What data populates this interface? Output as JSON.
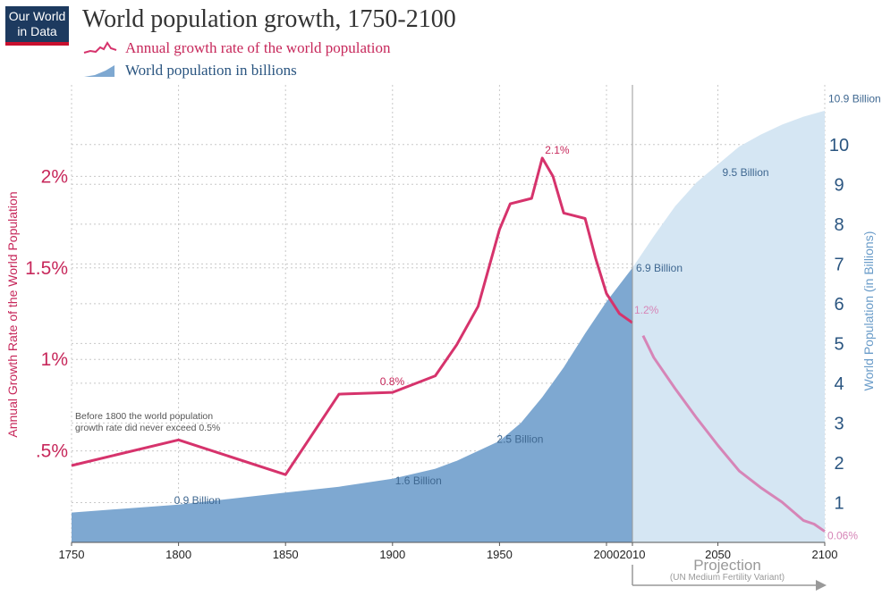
{
  "logo": {
    "line1": "Our World",
    "line2": "in Data"
  },
  "title": "World population growth, 1750-2100",
  "legend": {
    "growth_label": "Annual growth rate of the world population",
    "population_label": "World population in billions"
  },
  "colors": {
    "growth_line": "#d6336c",
    "growth_projection": "#d685b7",
    "population_area": "#7ea8d1",
    "population_projection": "#d5e6f3",
    "left_axis": "#c7285b",
    "right_axis": "#2a5580",
    "population_label_text": "#3f6891"
  },
  "chart_data": {
    "type": "line+area",
    "title": "World population growth, 1750-2100",
    "xlim": [
      1750,
      2100
    ],
    "x_ticks": [
      1750,
      1800,
      1850,
      1900,
      1950,
      2000,
      2010,
      2050,
      2100
    ],
    "left_axis": {
      "label": "Annual Growth Rate of the World Population",
      "ylim": [
        0,
        2.5
      ],
      "ticks": [
        {
          "value": 0.5,
          "label": ".5%"
        },
        {
          "value": 1,
          "label": "1%"
        },
        {
          "value": 1.5,
          "label": "1.5%"
        },
        {
          "value": 2,
          "label": "2%"
        }
      ]
    },
    "right_axis": {
      "label": "World Population (in Billions)",
      "ylim": [
        0,
        11.5
      ],
      "ticks": [
        1,
        2,
        3,
        4,
        5,
        6,
        7,
        8,
        9,
        10
      ]
    },
    "grid": true,
    "series": [
      {
        "name": "Annual growth rate of the world population",
        "axis": "left",
        "unit": "%",
        "historical": [
          [
            1750,
            0.42
          ],
          [
            1800,
            0.56
          ],
          [
            1850,
            0.37
          ],
          [
            1875,
            0.81
          ],
          [
            1900,
            0.82
          ],
          [
            1920,
            0.91
          ],
          [
            1930,
            1.08
          ],
          [
            1940,
            1.29
          ],
          [
            1950,
            1.71
          ],
          [
            1955,
            1.85
          ],
          [
            1965,
            1.88
          ],
          [
            1970,
            2.1
          ],
          [
            1975,
            2.0
          ],
          [
            1980,
            1.8
          ],
          [
            1990,
            1.77
          ],
          [
            1995,
            1.55
          ],
          [
            2000,
            1.36
          ],
          [
            2005,
            1.25
          ],
          [
            2010,
            1.2
          ]
        ],
        "projection": [
          [
            2015,
            1.13
          ],
          [
            2020,
            1.01
          ],
          [
            2030,
            0.84
          ],
          [
            2040,
            0.68
          ],
          [
            2050,
            0.53
          ],
          [
            2060,
            0.39
          ],
          [
            2070,
            0.3
          ],
          [
            2080,
            0.22
          ],
          [
            2090,
            0.12
          ],
          [
            2095,
            0.1
          ],
          [
            2100,
            0.06
          ]
        ]
      },
      {
        "name": "World population in billions",
        "axis": "right",
        "unit": "billion",
        "historical": [
          [
            1750,
            0.75
          ],
          [
            1800,
            0.95
          ],
          [
            1850,
            1.25
          ],
          [
            1875,
            1.4
          ],
          [
            1900,
            1.6
          ],
          [
            1920,
            1.85
          ],
          [
            1930,
            2.05
          ],
          [
            1940,
            2.3
          ],
          [
            1950,
            2.55
          ],
          [
            1960,
            3.0
          ],
          [
            1970,
            3.65
          ],
          [
            1980,
            4.4
          ],
          [
            1990,
            5.25
          ],
          [
            2000,
            6.05
          ],
          [
            2010,
            6.9
          ]
        ],
        "projection": [
          [
            2020,
            7.7
          ],
          [
            2030,
            8.45
          ],
          [
            2040,
            9.05
          ],
          [
            2050,
            9.5
          ],
          [
            2060,
            9.95
          ],
          [
            2070,
            10.25
          ],
          [
            2080,
            10.5
          ],
          [
            2090,
            10.7
          ],
          [
            2100,
            10.85
          ]
        ]
      }
    ],
    "annotations": {
      "early_note": [
        "Before 1800 the world population",
        "growth rate did never exceed 0.5%"
      ],
      "growth_labels": [
        {
          "text": "0.8%",
          "x": 1900,
          "y": 0.82
        },
        {
          "text": "2.1%",
          "x": 1970,
          "y": 2.1
        },
        {
          "text": "1.2%",
          "x": 2010,
          "y": 1.2
        },
        {
          "text": "0.06%",
          "x": 2100,
          "y": 0.06
        }
      ],
      "population_labels": [
        {
          "text": "0.9 Billion",
          "x": 1800,
          "y": 0.9
        },
        {
          "text": "1.6 Billion",
          "x": 1900,
          "y": 1.6
        },
        {
          "text": "2.5 Billion",
          "x": 1950,
          "y": 2.5
        },
        {
          "text": "6.9 Billion",
          "x": 2010,
          "y": 6.9
        },
        {
          "text": "9.5 Billion",
          "x": 2050,
          "y": 9.5
        },
        {
          "text": "10.9 Billion",
          "x": 2100,
          "y": 10.9
        }
      ],
      "projection_label": "Projection",
      "projection_sublabel": "(UN Medium Fertility Variant)"
    }
  }
}
